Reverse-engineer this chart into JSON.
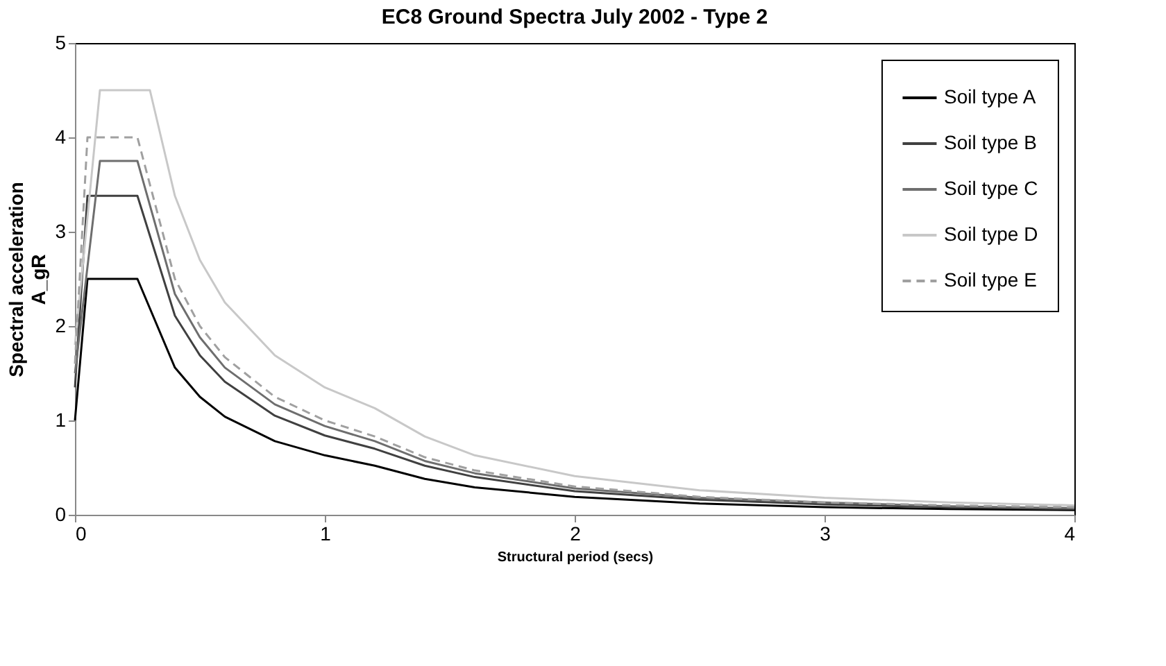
{
  "chart_data": {
    "type": "line",
    "title": "EC8 Ground Spectra July 2002 - Type 2",
    "xlabel": "Structural period (secs)",
    "ylabel": "Spectral acceleration\nA_gR",
    "xlim": [
      0,
      4
    ],
    "ylim": [
      0,
      5
    ],
    "xticks": [
      0,
      1,
      2,
      3,
      4
    ],
    "yticks": [
      0,
      1,
      2,
      3,
      4,
      5
    ],
    "grid": false,
    "legend": "top right",
    "marker": "none",
    "series": [
      {
        "name": "Soil type A",
        "color": "#000000",
        "line_style": "solid",
        "x": [
          0,
          0.05,
          0.25,
          0.4,
          0.5,
          0.6,
          0.8,
          1.0,
          1.2,
          1.4,
          1.6,
          2.0,
          2.5,
          3.0,
          3.5,
          4.0
        ],
        "values": [
          1.0,
          2.5,
          2.5,
          1.56,
          1.25,
          1.04,
          0.78,
          0.63,
          0.52,
          0.38,
          0.29,
          0.19,
          0.12,
          0.08,
          0.06,
          0.05
        ]
      },
      {
        "name": "Soil type B",
        "color": "#404040",
        "line_style": "solid",
        "x": [
          0,
          0.05,
          0.25,
          0.4,
          0.5,
          0.6,
          0.8,
          1.0,
          1.2,
          1.4,
          1.6,
          2.0,
          2.5,
          3.0,
          3.5,
          4.0
        ],
        "values": [
          1.35,
          3.38,
          3.38,
          2.11,
          1.69,
          1.41,
          1.05,
          0.84,
          0.7,
          0.52,
          0.4,
          0.25,
          0.16,
          0.11,
          0.08,
          0.06
        ]
      },
      {
        "name": "Soil type C",
        "color": "#6e6e6e",
        "line_style": "solid",
        "x": [
          0,
          0.1,
          0.25,
          0.4,
          0.5,
          0.6,
          0.8,
          1.0,
          1.2,
          1.4,
          1.6,
          2.0,
          2.5,
          3.0,
          3.5,
          4.0
        ],
        "values": [
          1.5,
          3.75,
          3.75,
          2.34,
          1.88,
          1.56,
          1.17,
          0.94,
          0.78,
          0.57,
          0.44,
          0.28,
          0.18,
          0.13,
          0.09,
          0.07
        ]
      },
      {
        "name": "Soil type D",
        "color": "#c8c8c8",
        "line_style": "solid",
        "x": [
          0,
          0.1,
          0.3,
          0.4,
          0.5,
          0.6,
          0.8,
          1.0,
          1.2,
          1.4,
          1.6,
          2.0,
          2.5,
          3.0,
          3.5,
          4.0
        ],
        "values": [
          1.8,
          4.5,
          4.5,
          3.38,
          2.7,
          2.25,
          1.69,
          1.35,
          1.13,
          0.83,
          0.63,
          0.41,
          0.26,
          0.18,
          0.13,
          0.1
        ]
      },
      {
        "name": "Soil type E",
        "color": "#a0a0a0",
        "line_style": "dashed",
        "x": [
          0,
          0.05,
          0.25,
          0.4,
          0.5,
          0.6,
          0.8,
          1.0,
          1.2,
          1.4,
          1.6,
          2.0,
          2.5,
          3.0,
          3.5,
          4.0
        ],
        "values": [
          1.6,
          4.0,
          4.0,
          2.5,
          2.0,
          1.67,
          1.25,
          1.0,
          0.83,
          0.61,
          0.47,
          0.3,
          0.19,
          0.13,
          0.1,
          0.08
        ]
      }
    ]
  }
}
